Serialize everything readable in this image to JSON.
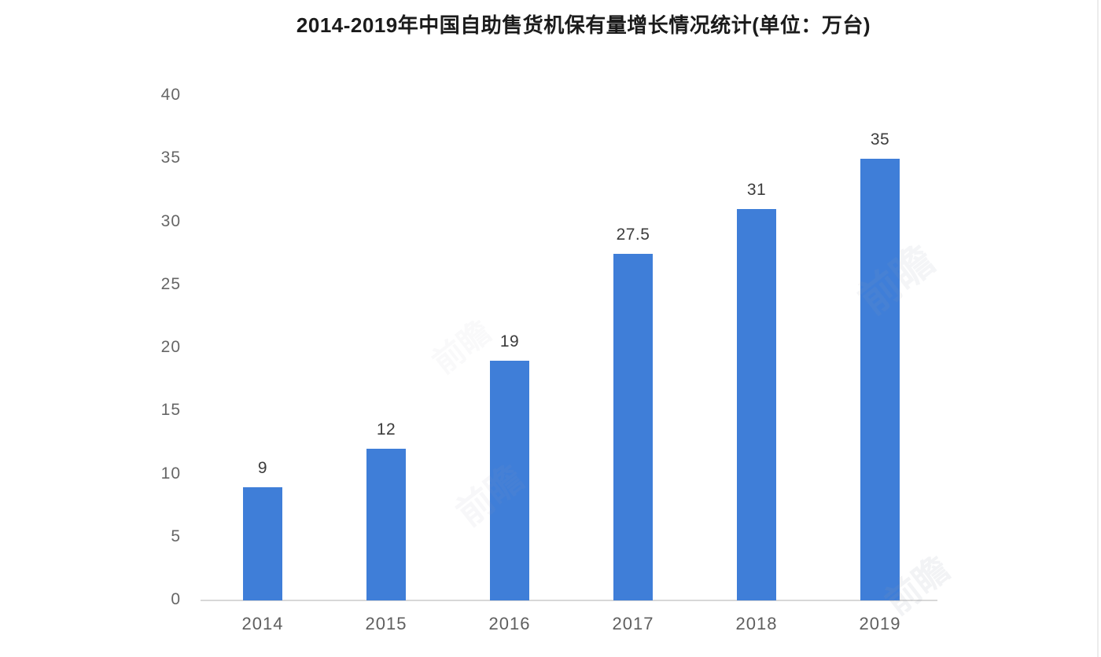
{
  "title": "2014-2019年中国自助售货机保有量增长情况统计(单位：万台)",
  "chart_data": {
    "type": "bar",
    "title": "2014-2019年中国自助售货机保有量增长情况统计(单位：万台)",
    "unit": "万台",
    "categories": [
      "2014",
      "2015",
      "2016",
      "2017",
      "2018",
      "2019"
    ],
    "values": [
      9,
      12,
      19,
      27.5,
      31,
      35
    ],
    "data_labels": [
      "9",
      "12",
      "19",
      "27.5",
      "31",
      "35"
    ],
    "xlabel": "",
    "ylabel": "",
    "ylim": [
      0,
      40
    ],
    "y_ticks": [
      0,
      5,
      10,
      15,
      20,
      25,
      30,
      35,
      40
    ],
    "grid": false,
    "legend": false,
    "bar_color": "#3F7ED8"
  },
  "watermark": {
    "text": "前瞻"
  },
  "colors": {
    "background": "#FFFFFF",
    "bar": "#3F7ED8",
    "axis_line": "#D8D8D8",
    "tick_label": "#666666",
    "x_label": "#5F5F5F",
    "data_label": "#3C3C3C",
    "title": "#1B1B1B"
  }
}
